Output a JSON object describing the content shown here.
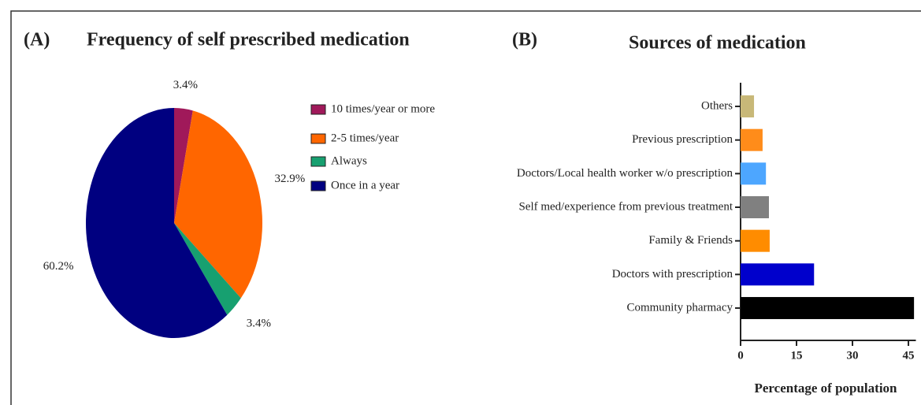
{
  "chart_data": [
    {
      "type": "pie",
      "label": "(A)",
      "title": "Frequency of self prescribed medication",
      "categories": [
        "10 times/year or more",
        "2-5 times/year",
        "Always",
        "Once in a year"
      ],
      "values": [
        3.4,
        32.9,
        3.4,
        60.2
      ],
      "value_labels": [
        "3.4%",
        "32.9%",
        "3.4%",
        "60.2%"
      ],
      "colors": [
        "#a0195a",
        "#ff6600",
        "#17a070",
        "#000080"
      ]
    },
    {
      "type": "barh",
      "label": "(B)",
      "title": "Sources of medication",
      "categories": [
        "Others",
        "Previous prescription",
        "Doctors/Local health worker w/o prescription",
        "Self med/experience from previous treatment",
        "Family & Friends",
        "Doctors with prescription",
        "Community pharmacy"
      ],
      "values": [
        3.6,
        5.9,
        6.8,
        7.6,
        7.8,
        19.7,
        46.5
      ],
      "colors": [
        "#c8b878",
        "#ff8c1a",
        "#4da6ff",
        "#808080",
        "#ff8c00",
        "#0000cc",
        "#000000"
      ],
      "xlabel": "Percentage of population",
      "xlim": [
        0,
        47
      ],
      "xticks": [
        0,
        15,
        30,
        45
      ]
    }
  ]
}
